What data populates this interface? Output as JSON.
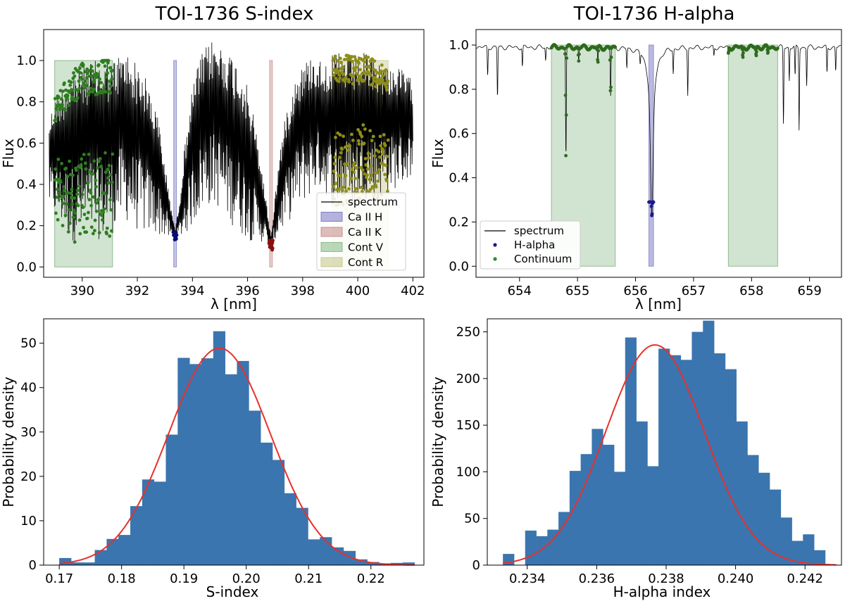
{
  "chart_data": [
    {
      "type": "line",
      "title": "TOI-1736 S-index",
      "xlabel": "λ [nm]",
      "ylabel": "Flux",
      "xlim": [
        388.6,
        402.4
      ],
      "ylim": [
        -0.05,
        1.15
      ],
      "xticks": [
        390,
        392,
        394,
        396,
        398,
        400,
        402
      ],
      "xtick_labels": [
        "390",
        "392",
        "394",
        "396",
        "398",
        "400",
        "402"
      ],
      "yticks": [
        0.0,
        0.2,
        0.4,
        0.6,
        0.8,
        1.0
      ],
      "ytick_labels": [
        "0.0",
        "0.2",
        "0.4",
        "0.6",
        "0.8",
        "1.0"
      ],
      "legend_position": "lower-right",
      "legend": [
        {
          "label": "spectrum",
          "kind": "line",
          "color": "#000000"
        },
        {
          "label": "Ca II H",
          "kind": "patch",
          "color": "#8080c8"
        },
        {
          "label": "Ca II K",
          "kind": "patch",
          "color": "#c89090"
        },
        {
          "label": "Cont V",
          "kind": "patch",
          "color": "#8cbd8c"
        },
        {
          "label": "Cont R",
          "kind": "patch",
          "color": "#c8c890"
        }
      ],
      "bands": [
        {
          "name": "Ca II H",
          "x0": 393.32,
          "x1": 393.42,
          "y0": 0.0,
          "y1": 1.0,
          "color": "#8080c8",
          "opacity": 0.45
        },
        {
          "name": "Ca II K",
          "x0": 396.8,
          "x1": 396.9,
          "y0": 0.0,
          "y1": 1.0,
          "color": "#c89090",
          "opacity": 0.45
        },
        {
          "name": "Cont V",
          "x0": 389.0,
          "x1": 391.1,
          "y0": 0.0,
          "y1": 1.0,
          "color": "#7aaf7a",
          "opacity": 0.35
        },
        {
          "name": "Cont R",
          "x0": 399.1,
          "x1": 401.1,
          "y0": 0.0,
          "y1": 1.0,
          "color": "#c8c890",
          "opacity": 0.45
        }
      ],
      "spectrum": {
        "x": [
          388.8,
          389.0,
          389.3,
          389.6,
          389.9,
          390.2,
          390.5,
          390.8,
          391.1,
          391.3,
          391.6,
          391.9,
          392.2,
          392.5,
          392.8,
          393.0,
          393.2,
          393.37,
          393.55,
          393.8,
          394.1,
          394.4,
          394.7,
          395.0,
          395.3,
          395.6,
          395.9,
          396.2,
          396.5,
          396.7,
          396.85,
          397.0,
          397.2,
          397.5,
          397.8,
          398.1,
          398.4,
          398.7,
          399.0,
          399.3,
          399.6,
          399.9,
          400.2,
          400.5,
          400.8,
          401.1,
          401.4,
          401.7,
          402.0
        ],
        "upper": [
          0.72,
          0.82,
          0.88,
          0.95,
          0.98,
          1.0,
          1.0,
          1.02,
          1.0,
          1.03,
          1.05,
          1.0,
          0.95,
          0.85,
          0.7,
          0.5,
          0.32,
          0.18,
          0.35,
          0.7,
          0.95,
          1.05,
          1.1,
          1.08,
          1.05,
          1.0,
          0.92,
          0.75,
          0.5,
          0.3,
          0.15,
          0.35,
          0.6,
          0.82,
          0.95,
          1.0,
          1.03,
          1.0,
          1.02,
          1.04,
          1.03,
          1.02,
          1.04,
          1.02,
          1.0,
          0.98,
          0.97,
          0.95,
          0.9
        ],
        "lower": [
          0.28,
          0.24,
          0.18,
          0.12,
          0.12,
          0.14,
          0.14,
          0.12,
          0.16,
          0.2,
          0.22,
          0.18,
          0.16,
          0.15,
          0.15,
          0.14,
          0.13,
          0.13,
          0.14,
          0.16,
          0.22,
          0.28,
          0.3,
          0.28,
          0.22,
          0.18,
          0.14,
          0.12,
          0.12,
          0.1,
          0.09,
          0.12,
          0.16,
          0.22,
          0.28,
          0.32,
          0.36,
          0.38,
          0.3,
          0.28,
          0.3,
          0.3,
          0.34,
          0.32,
          0.34,
          0.36,
          0.38,
          0.4,
          0.45
        ]
      },
      "point_series": [
        {
          "name": "Ca II H",
          "x0": 393.3,
          "x1": 393.43,
          "ymin": 0.13,
          "ymax": 0.17,
          "color": "#0a0a7a"
        },
        {
          "name": "Ca II K",
          "x0": 396.78,
          "x1": 396.92,
          "ymin": 0.08,
          "ymax": 0.13,
          "color": "#8b1010"
        },
        {
          "name": "Cont V",
          "x0": 389.0,
          "x1": 391.1,
          "ymin": 0.1,
          "ymax": 1.0,
          "color": "#2e7d20"
        },
        {
          "name": "Cont R",
          "x0": 399.1,
          "x1": 401.1,
          "ymin": 0.3,
          "ymax": 1.04,
          "color": "#8d8d1a"
        }
      ]
    },
    {
      "type": "line",
      "title": "TOI-1736 H-alpha",
      "xlabel": "λ [nm]",
      "ylabel": "Flux",
      "xlim": [
        653.25,
        659.55
      ],
      "ylim": [
        -0.05,
        1.07
      ],
      "xticks": [
        654,
        655,
        656,
        657,
        658,
        659
      ],
      "xtick_labels": [
        "654",
        "655",
        "656",
        "657",
        "658",
        "659"
      ],
      "yticks": [
        0.0,
        0.2,
        0.4,
        0.6,
        0.8,
        1.0
      ],
      "ytick_labels": [
        "0.0",
        "0.2",
        "0.4",
        "0.6",
        "0.8",
        "1.0"
      ],
      "legend_position": "lower-left",
      "legend": [
        {
          "label": "spectrum",
          "kind": "line",
          "color": "#000000"
        },
        {
          "label": "H-alpha",
          "kind": "dot",
          "color": "#1a1a8c"
        },
        {
          "label": "Continuum",
          "kind": "dot",
          "color": "#2e8b2e"
        }
      ],
      "bands": [
        {
          "name": "Continuum blue",
          "x0": 654.55,
          "x1": 655.65,
          "y0": 0.0,
          "y1": 1.0,
          "color": "#7aaf7a",
          "opacity": 0.35
        },
        {
          "name": "H-alpha",
          "x0": 656.23,
          "x1": 656.31,
          "y0": 0.0,
          "y1": 1.0,
          "color": "#8080c8",
          "opacity": 0.55
        },
        {
          "name": "Continuum red",
          "x0": 657.6,
          "x1": 658.45,
          "y0": 0.0,
          "y1": 1.0,
          "color": "#7aaf7a",
          "opacity": 0.35
        }
      ],
      "continuum_level": 0.99,
      "halpha_core": {
        "center": 656.28,
        "depth": 0.22
      },
      "absorption_lines": [
        {
          "x": 653.45,
          "y": 0.86
        },
        {
          "x": 653.62,
          "y": 0.76
        },
        {
          "x": 654.05,
          "y": 0.9
        },
        {
          "x": 654.45,
          "y": 0.93
        },
        {
          "x": 654.8,
          "y": 0.49
        },
        {
          "x": 655.02,
          "y": 0.93
        },
        {
          "x": 655.35,
          "y": 0.91
        },
        {
          "x": 655.57,
          "y": 0.77
        },
        {
          "x": 655.85,
          "y": 0.9
        },
        {
          "x": 656.08,
          "y": 0.94
        },
        {
          "x": 656.65,
          "y": 0.88
        },
        {
          "x": 656.9,
          "y": 0.78
        },
        {
          "x": 657.35,
          "y": 0.95
        },
        {
          "x": 657.6,
          "y": 0.96
        },
        {
          "x": 657.85,
          "y": 0.94
        },
        {
          "x": 658.08,
          "y": 0.95
        },
        {
          "x": 658.28,
          "y": 0.96
        },
        {
          "x": 658.55,
          "y": 0.64
        },
        {
          "x": 658.65,
          "y": 0.84
        },
        {
          "x": 658.75,
          "y": 0.85
        },
        {
          "x": 658.82,
          "y": 0.62
        },
        {
          "x": 658.95,
          "y": 0.82
        },
        {
          "x": 659.3,
          "y": 0.87
        },
        {
          "x": 659.45,
          "y": 0.88
        }
      ],
      "point_series": [
        {
          "name": "H-alpha",
          "x0": 656.23,
          "x1": 656.31,
          "ymin": 0.21,
          "ymax": 0.29,
          "color": "#1a1a8c"
        },
        {
          "name": "Continuum",
          "x0": 654.55,
          "x1": 655.65,
          "ymin": 0.5,
          "ymax": 1.01,
          "color": "#2e6b1e"
        },
        {
          "name": "Continuum",
          "x0": 657.6,
          "x1": 658.45,
          "ymin": 0.9,
          "ymax": 1.0,
          "color": "#2e6b1e"
        }
      ]
    },
    {
      "type": "bar",
      "title": "",
      "xlabel": "S-index",
      "ylabel": "Probability density",
      "xlim": [
        0.1675,
        0.2285
      ],
      "ylim": [
        0,
        55.5
      ],
      "xticks": [
        0.17,
        0.18,
        0.19,
        0.2,
        0.21,
        0.22
      ],
      "xtick_labels": [
        "0.17",
        "0.18",
        "0.19",
        "0.20",
        "0.21",
        "0.22"
      ],
      "yticks": [
        0,
        10,
        20,
        30,
        40,
        50
      ],
      "ytick_labels": [
        "0",
        "10",
        "20",
        "30",
        "40",
        "50"
      ],
      "bin_edges": [
        0.17,
        0.1719,
        0.1738,
        0.1757,
        0.1776,
        0.1795,
        0.1814,
        0.1833,
        0.1852,
        0.1871,
        0.189,
        0.1909,
        0.1928,
        0.1947,
        0.1966,
        0.1985,
        0.2004,
        0.2023,
        0.2042,
        0.2061,
        0.208,
        0.2099,
        0.2118,
        0.2137,
        0.2156,
        0.2175,
        0.2194,
        0.2213,
        0.2232,
        0.2251,
        0.227
      ],
      "values": [
        1.6,
        0.6,
        0.6,
        3.4,
        5.9,
        6.8,
        13.3,
        19.3,
        18.8,
        29.4,
        46.7,
        45.3,
        46.6,
        52.7,
        43.0,
        46.0,
        34.8,
        27.6,
        23.7,
        16.2,
        12.9,
        5.8,
        6.3,
        4.0,
        3.2,
        1.3,
        0.7,
        0.4,
        0.5,
        0.6
      ],
      "bar_color": "#3b75af",
      "fit": {
        "color": "#e8302a",
        "mean": 0.1957,
        "sigma": 0.00815,
        "amplitude": 48.9
      }
    },
    {
      "type": "bar",
      "title": "",
      "xlabel": "H-alpha index",
      "ylabel": "Probability density",
      "xlim": [
        0.23285,
        0.24305
      ],
      "ylim": [
        0,
        264
      ],
      "xticks": [
        0.234,
        0.236,
        0.238,
        0.24,
        0.242
      ],
      "xtick_labels": [
        "0.234",
        "0.236",
        "0.238",
        "0.240",
        "0.242"
      ],
      "yticks": [
        0,
        50,
        100,
        150,
        200,
        250
      ],
      "ytick_labels": [
        "0",
        "50",
        "100",
        "150",
        "200",
        "250"
      ],
      "bin_edges": [
        0.2333,
        0.23362,
        0.23394,
        0.23426,
        0.23458,
        0.2349,
        0.23522,
        0.23554,
        0.23586,
        0.23618,
        0.2365,
        0.23682,
        0.23714,
        0.23746,
        0.23778,
        0.2381,
        0.23842,
        0.23874,
        0.23906,
        0.23938,
        0.2397,
        0.24002,
        0.24034,
        0.24066,
        0.24098,
        0.2413,
        0.24162,
        0.24194,
        0.24226,
        0.24258,
        0.2429
      ],
      "values": [
        12,
        0,
        37,
        31,
        38,
        57,
        101,
        119,
        146,
        129,
        100,
        244,
        154,
        106,
        232,
        225,
        220,
        250,
        262,
        227,
        210,
        154,
        118,
        99,
        81,
        51,
        26,
        33,
        16,
        0
      ],
      "bar_color": "#3b75af",
      "fit": {
        "color": "#e8302a",
        "mean": 0.23768,
        "sigma": 0.00142,
        "amplitude": 236
      }
    }
  ]
}
